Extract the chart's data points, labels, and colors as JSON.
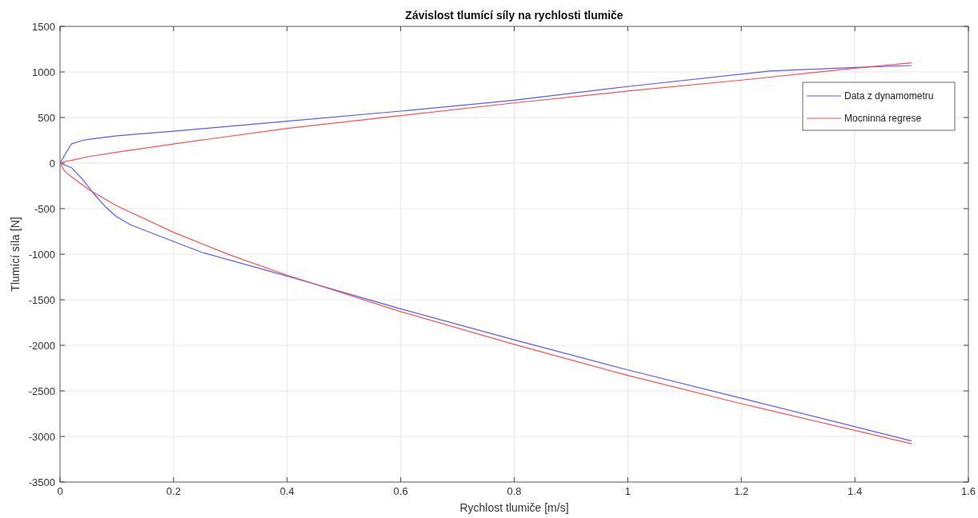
{
  "chart_data": {
    "type": "line",
    "title": "Závislost tlumící síly na rychlosti tlumiče",
    "xlabel": "Rychlost tlumiče [m/s]",
    "ylabel": "Tlumící síla [N]",
    "xlim": [
      0,
      1.6
    ],
    "xticks": [
      0,
      0.2,
      0.4,
      0.6,
      0.8,
      1,
      1.2,
      1.4,
      1.6
    ],
    "ylim": [
      -3500,
      1500
    ],
    "yticks": [
      -3500,
      -3000,
      -2500,
      -2000,
      -1500,
      -1000,
      -500,
      0,
      500,
      1000,
      1500
    ],
    "grid": true,
    "legend": "top right",
    "line_style": "solid",
    "series": [
      {
        "name": "Data z dynamometru",
        "color": "#5a5aff",
        "x": [
          1.5,
          1.4,
          1.25,
          1.0,
          0.8,
          0.6,
          0.4,
          0.2,
          0.1,
          0.05,
          0.04,
          0.02,
          0,
          0.02,
          0.04,
          0.06,
          0.08,
          0.1,
          0.125,
          0.25,
          0.4,
          0.6,
          0.8,
          1.0,
          1.2,
          1.5
        ],
        "values": [
          1070,
          1050,
          1010,
          840,
          690,
          570,
          460,
          350,
          300,
          260,
          250,
          210,
          0,
          -50,
          -180,
          -340,
          -480,
          -590,
          -680,
          -980,
          -1240,
          -1600,
          -1940,
          -2270,
          -2580,
          -3050
        ]
      },
      {
        "name": "Mocninná regrese",
        "color": "#ff5050",
        "x": [
          1.5,
          1.4,
          1.2,
          1.0,
          0.8,
          0.6,
          0.4,
          0.2,
          0.1,
          0.05,
          0.02,
          0.01,
          0,
          0.005,
          0.01,
          0.02,
          0.05,
          0.1,
          0.2,
          0.3,
          0.4,
          0.6,
          0.8,
          1.0,
          1.2,
          1.5
        ],
        "values": [
          1100,
          1040,
          910,
          790,
          660,
          520,
          380,
          210,
          120,
          70,
          30,
          20,
          0,
          -60,
          -100,
          -150,
          -290,
          -470,
          -760,
          -1010,
          -1230,
          -1630,
          -1990,
          -2330,
          -2640,
          -3080
        ]
      }
    ]
  }
}
